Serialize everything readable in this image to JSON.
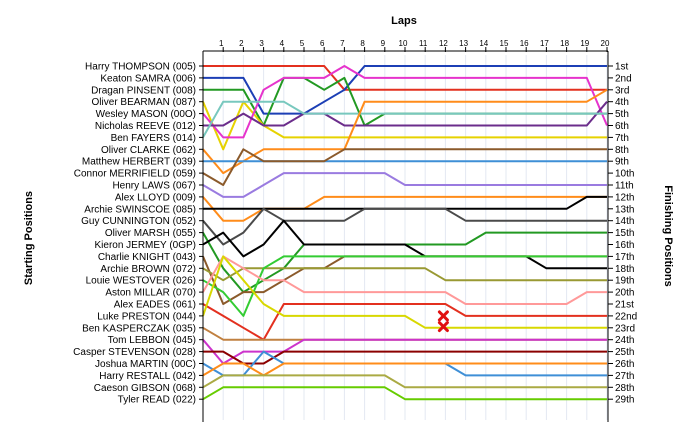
{
  "chart_data": {
    "type": "line",
    "xlabel": "Laps",
    "ylabel_left": "Starting Positions",
    "ylabel_right": "Finishing Positions",
    "laps": [
      1,
      2,
      3,
      4,
      5,
      6,
      7,
      8,
      9,
      10,
      11,
      12,
      13,
      14,
      15,
      16,
      17,
      18,
      19,
      20
    ],
    "finishing_labels": [
      "1st",
      "2nd",
      "3rd",
      "4th",
      "5th",
      "6th",
      "7th",
      "8th",
      "9th",
      "10th",
      "11th",
      "12th",
      "13th",
      "14th",
      "15th",
      "16th",
      "17th",
      "18th",
      "19th",
      "20th",
      "21st",
      "22nd",
      "23rd",
      "24th",
      "25th",
      "26th",
      "27th",
      "28th",
      "29th"
    ],
    "accident_markers": [
      {
        "lap": 12,
        "position": 22.0
      },
      {
        "lap": 12,
        "position": 22.9
      }
    ],
    "drivers": [
      {
        "label": "Harry THOMPSON (005)",
        "color": "#e3301f",
        "positions": [
          1,
          1,
          1,
          1,
          1,
          1,
          1,
          3,
          3,
          3,
          3,
          3,
          3,
          3,
          3,
          3,
          3,
          3,
          3,
          3,
          3
        ]
      },
      {
        "label": "Keaton SAMRA (006)",
        "color": "#1c3fb5",
        "positions": [
          2,
          2,
          2,
          5,
          5,
          5,
          4,
          3,
          1,
          1,
          1,
          1,
          1,
          1,
          1,
          1,
          1,
          1,
          1,
          1,
          1
        ]
      },
      {
        "label": "Dragan PINSENT (008)",
        "color": "#229922",
        "positions": [
          3,
          3,
          3,
          6,
          2,
          2,
          3,
          2,
          6,
          5,
          5,
          5,
          5,
          5,
          5,
          5,
          5,
          5,
          5,
          5,
          5
        ]
      },
      {
        "label": "Oliver BEARMAN (087)",
        "color": "#e6d200",
        "positions": [
          4,
          8,
          4,
          6,
          7,
          7,
          7,
          7,
          7,
          7,
          7,
          7,
          7,
          7,
          7,
          7,
          7,
          7,
          7,
          7,
          7
        ]
      },
      {
        "label": "Wesley MASON (00O)",
        "color": "#e633cc",
        "positions": [
          5,
          7,
          7,
          3,
          2,
          2,
          2,
          1,
          2,
          2,
          2,
          2,
          2,
          2,
          2,
          2,
          2,
          2,
          2,
          2,
          6
        ]
      },
      {
        "label": "Nicholas REEVE (012)",
        "color": "#6b2d8b",
        "positions": [
          6,
          6,
          5,
          6,
          6,
          5,
          5,
          6,
          6,
          6,
          6,
          6,
          6,
          6,
          6,
          6,
          6,
          6,
          6,
          6,
          4
        ]
      },
      {
        "label": "Ben FAYERS (014)",
        "color": "#78c8be",
        "positions": [
          7,
          4,
          4,
          4,
          4,
          5,
          5,
          5,
          5,
          5,
          5,
          5,
          5,
          5,
          5,
          5,
          5,
          5,
          5,
          5,
          5
        ]
      },
      {
        "label": "Oliver CLARKE (062)",
        "color": "#ff8c1a",
        "positions": [
          8,
          10,
          9,
          8,
          8,
          8,
          8,
          8,
          4,
          4,
          4,
          4,
          4,
          4,
          4,
          4,
          4,
          4,
          4,
          4,
          3
        ]
      },
      {
        "label": "Matthew HERBERT (039)",
        "color": "#3f8fd6",
        "positions": [
          9,
          9,
          9,
          9,
          9,
          9,
          9,
          9,
          9,
          9,
          9,
          9,
          9,
          9,
          9,
          9,
          9,
          9,
          9,
          9,
          9
        ]
      },
      {
        "label": "Connor MERRIFIELD (059)",
        "color": "#8b5a2b",
        "positions": [
          10,
          11,
          8,
          9,
          9,
          9,
          9,
          8,
          8,
          8,
          8,
          8,
          8,
          8,
          8,
          8,
          8,
          8,
          8,
          8,
          8
        ]
      },
      {
        "label": "Henry LAWS (067)",
        "color": "#9a7be0",
        "positions": [
          11,
          12,
          12,
          11,
          10,
          10,
          10,
          10,
          10,
          10,
          11,
          11,
          11,
          11,
          11,
          11,
          11,
          11,
          11,
          11,
          11
        ]
      },
      {
        "label": "Alex LLOYD (009)",
        "color": "#ff8c1a",
        "positions": [
          12,
          14,
          14,
          13,
          13,
          13,
          12,
          12,
          12,
          12,
          12,
          12,
          12,
          12,
          12,
          12,
          12,
          12,
          12,
          12,
          12
        ]
      },
      {
        "label": "Archie SWINSCOE (085)",
        "color": "#000000",
        "positions": [
          13,
          13,
          13,
          13,
          13,
          13,
          13,
          13,
          13,
          13,
          13,
          13,
          13,
          13,
          13,
          13,
          13,
          13,
          13,
          12,
          12
        ]
      },
      {
        "label": "Guy CUNNINGTON (052)",
        "color": "#4a4a4a",
        "positions": [
          14,
          16,
          15,
          13,
          14,
          14,
          14,
          14,
          13,
          13,
          13,
          13,
          13,
          14,
          14,
          14,
          14,
          14,
          14,
          14,
          14
        ]
      },
      {
        "label": "Oliver MARSH (055)",
        "color": "#229922",
        "positions": [
          15,
          18,
          20,
          19,
          18,
          16,
          16,
          16,
          16,
          16,
          16,
          16,
          16,
          16,
          15,
          15,
          15,
          15,
          15,
          15,
          15
        ]
      },
      {
        "label": "Kieron JERMEY (0GP)",
        "color": "#000000",
        "positions": [
          16,
          15,
          17,
          16,
          14,
          16,
          16,
          16,
          16,
          16,
          16,
          17,
          17,
          17,
          17,
          17,
          17,
          18,
          18,
          18,
          18
        ]
      },
      {
        "label": "Charlie KNIGHT (043)",
        "color": "#8b5a2b",
        "positions": [
          17,
          21,
          20,
          20,
          19,
          18,
          18,
          17,
          17,
          17,
          17,
          17,
          17,
          17,
          17,
          17,
          17,
          17,
          17,
          17,
          17
        ]
      },
      {
        "label": "Archie BROWN (072)",
        "color": "#999933",
        "positions": [
          18,
          19,
          18,
          18,
          18,
          18,
          18,
          18,
          18,
          18,
          18,
          18,
          19,
          19,
          19,
          19,
          19,
          19,
          19,
          19,
          19
        ]
      },
      {
        "label": "Louie WESTOVER (026)",
        "color": "#33cc33",
        "positions": [
          19,
          20,
          22,
          18,
          17,
          17,
          17,
          17,
          17,
          17,
          17,
          17,
          17,
          17,
          17,
          17,
          17,
          17,
          17,
          17,
          17
        ]
      },
      {
        "label": "Aston MILLAR (070)",
        "color": "#ff9999",
        "positions": [
          20,
          17,
          18,
          19,
          19,
          20,
          20,
          20,
          20,
          20,
          20,
          20,
          20,
          21,
          21,
          21,
          21,
          21,
          21,
          20,
          20
        ]
      },
      {
        "label": "Alex EADES (061)",
        "color": "#e3301f",
        "positions": [
          21,
          22,
          23,
          24,
          21,
          21,
          21,
          21,
          21,
          21,
          21,
          21,
          21,
          22,
          22,
          22,
          22,
          22,
          22,
          22,
          22
        ]
      },
      {
        "label": "Luke PRESTON (044)",
        "color": "#d8d800",
        "positions": [
          22,
          17,
          19,
          21,
          22,
          22,
          22,
          22,
          22,
          22,
          22,
          23,
          23,
          23,
          23,
          23,
          23,
          23,
          23,
          23,
          23
        ]
      },
      {
        "label": "Ben KASPERCZAK (035)",
        "color": "#c08040",
        "positions": [
          23,
          24,
          24,
          24,
          24,
          24,
          24,
          24,
          24,
          24,
          24,
          24,
          24,
          24,
          24,
          24,
          24,
          24,
          24,
          24,
          24
        ]
      },
      {
        "label": "Tom LEBBON (045)",
        "color": "#cc33cc",
        "positions": [
          24,
          26,
          25,
          25,
          25,
          24,
          24,
          24,
          24,
          24,
          24,
          24,
          24,
          24,
          24,
          24,
          24,
          24,
          24,
          24,
          24
        ]
      },
      {
        "label": "Casper STEVENSON (028)",
        "color": "#8b0000",
        "positions": [
          25,
          25,
          26,
          26,
          25,
          25,
          25,
          25,
          25,
          25,
          25,
          25,
          25,
          25,
          25,
          25,
          25,
          25,
          25,
          25,
          25
        ]
      },
      {
        "label": "Joshua MARTIN (00C)",
        "color": "#3f8fd6",
        "positions": [
          26,
          27,
          27,
          25,
          26,
          26,
          26,
          26,
          26,
          26,
          26,
          26,
          26,
          27,
          27,
          27,
          27,
          27,
          27,
          27,
          27
        ]
      },
      {
        "label": "Harry RESTALL (042)",
        "color": "#ff8c1a",
        "positions": [
          27,
          26,
          26,
          27,
          26,
          26,
          26,
          26,
          26,
          26,
          26,
          26,
          26,
          26,
          26,
          26,
          26,
          26,
          26,
          26,
          26
        ]
      },
      {
        "label": "Caeson GIBSON (068)",
        "color": "#aaaa44",
        "positions": [
          28,
          27,
          27,
          27,
          27,
          27,
          27,
          27,
          27,
          27,
          28,
          28,
          28,
          28,
          28,
          28,
          28,
          28,
          28,
          28,
          28
        ]
      },
      {
        "label": "Tyler READ (022)",
        "color": "#66cc00",
        "positions": [
          29,
          28,
          28,
          28,
          28,
          28,
          28,
          28,
          28,
          28,
          29,
          29,
          29,
          29,
          29,
          29,
          29,
          29,
          29,
          29,
          29
        ]
      }
    ]
  }
}
